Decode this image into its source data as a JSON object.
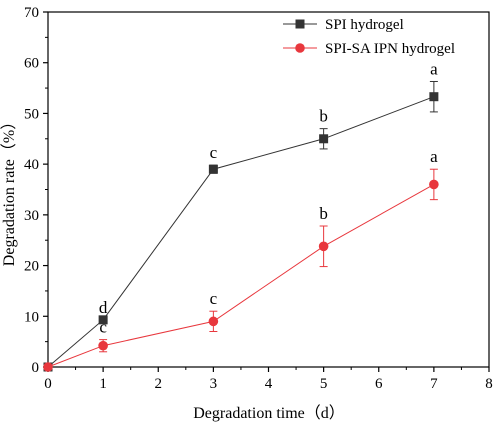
{
  "chart_data": {
    "type": "line",
    "xlabel": "Degradation time（d）",
    "ylabel": "Degradation rate（%）",
    "xlim": [
      0,
      8
    ],
    "ylim": [
      0,
      70
    ],
    "xticks": [
      0,
      1,
      2,
      3,
      4,
      5,
      6,
      7,
      8
    ],
    "yticks": [
      0,
      10,
      20,
      30,
      40,
      50,
      60,
      70
    ],
    "grid": false,
    "legend_position": "top-right",
    "series": [
      {
        "name": "SPI hydrogel",
        "marker": "square",
        "color": "#333333",
        "x": [
          0,
          1,
          3,
          5,
          7
        ],
        "y": [
          0,
          9.3,
          39.0,
          45.0,
          53.3
        ],
        "error": [
          0,
          0,
          0.8,
          2.0,
          3.0
        ],
        "labels": [
          "",
          "d",
          "c",
          "b",
          "a"
        ]
      },
      {
        "name": "SPI-SA IPN hydrogel",
        "marker": "circle",
        "color": "#e8373d",
        "x": [
          0,
          1,
          3,
          5,
          7
        ],
        "y": [
          0,
          4.2,
          9.0,
          23.8,
          36.0
        ],
        "error": [
          0,
          1.2,
          2.0,
          4.0,
          3.0
        ],
        "labels": [
          "",
          "c",
          "c",
          "b",
          "a"
        ]
      }
    ]
  }
}
